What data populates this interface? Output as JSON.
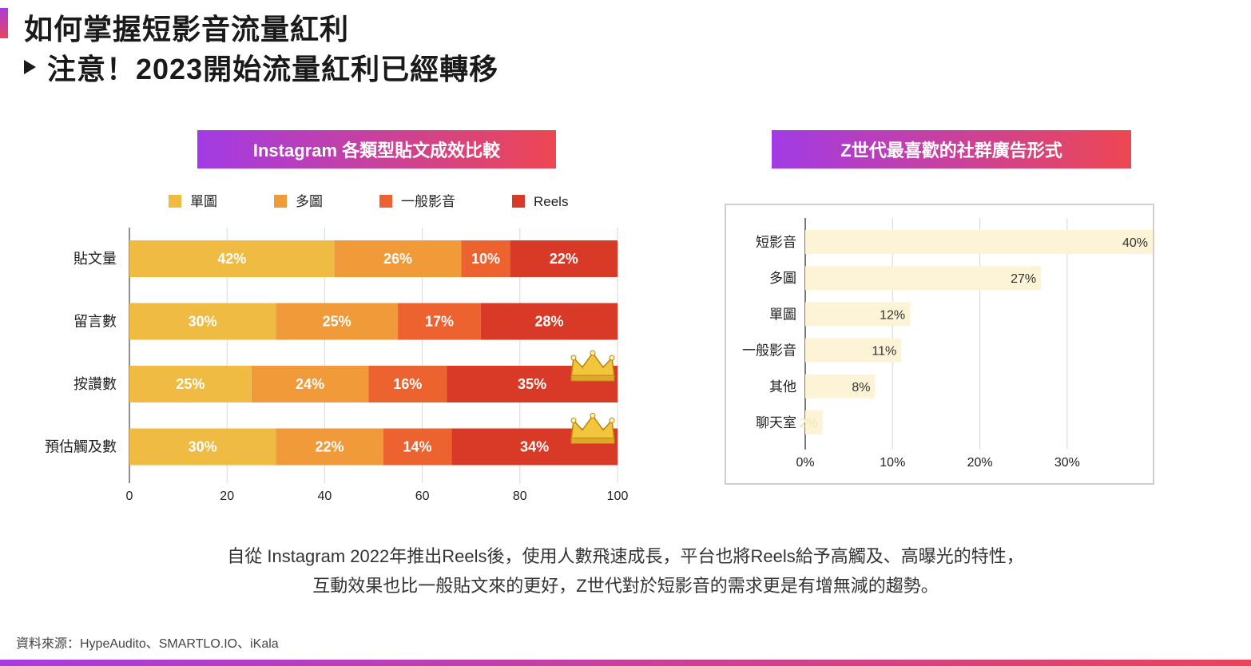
{
  "header": {
    "title": "如何掌握短影音流量紅利",
    "subtitle": "注意！2023開始流量紅利已經轉移"
  },
  "chart_data": [
    {
      "type": "bar",
      "orientation": "horizontal",
      "stacked": true,
      "title": "Instagram 各類型貼文成效比較",
      "categories": [
        "貼文量",
        "留言數",
        "按讚數",
        "預估觸及數"
      ],
      "series": [
        {
          "name": "單圖",
          "color": "#efbb42",
          "values": [
            42,
            30,
            25,
            30
          ]
        },
        {
          "name": "多圖",
          "color": "#f09a3a",
          "values": [
            26,
            25,
            24,
            22
          ]
        },
        {
          "name": "一般影音",
          "color": "#ec6330",
          "values": [
            10,
            17,
            16,
            14
          ]
        },
        {
          "name": "Reels",
          "color": "#d93a28",
          "values": [
            22,
            28,
            35,
            34
          ]
        }
      ],
      "value_suffix": "%",
      "xlim": [
        0,
        100
      ],
      "xticks": [
        0,
        20,
        40,
        60,
        80,
        100
      ],
      "crown_icons_on": [
        "按讚數",
        "預估觸及數"
      ],
      "legend_position": "top"
    },
    {
      "type": "bar",
      "orientation": "horizontal",
      "title": "Z世代最喜歡的社群廣告形式",
      "categories": [
        "短影音",
        "多圖",
        "單圖",
        "一般影音",
        "其他",
        "聊天室"
      ],
      "values": [
        40,
        27,
        12,
        11,
        8,
        2
      ],
      "value_suffix": "%",
      "bar_color": "#fdf3d6",
      "xlim": [
        0,
        40
      ],
      "xticks": [
        0,
        10,
        20,
        30
      ],
      "xtick_labels": [
        "0%",
        "10%",
        "20%",
        "30%"
      ]
    }
  ],
  "description": {
    "line1": "自從 Instagram 2022年推出Reels後，使用人數飛速成長，平台也將Reels給予高觸及、高曝光的特性，",
    "line2": "互動效果也比一般貼文來的更好，Z世代對於短影音的需求更是有增無減的趨勢。"
  },
  "source": "資料來源：HypeAudito、SMARTLO.IO、iKala",
  "colors": {
    "accent_start": "#a83be0",
    "accent_end": "#e8455b"
  }
}
